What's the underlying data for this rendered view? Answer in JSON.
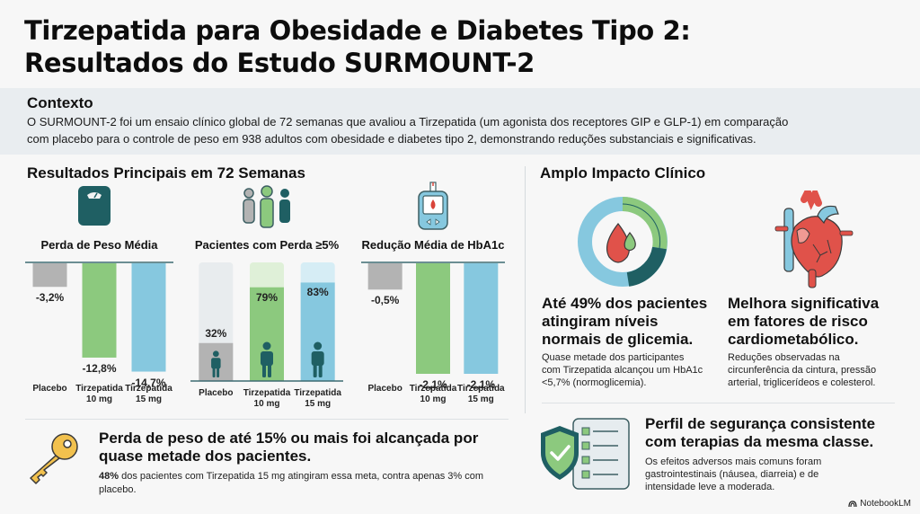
{
  "title": {
    "line1": "Tirzepatida para Obesidade e Diabetes Tipo 2:",
    "line2": "Resultados do Estudo SURMOUNT-2"
  },
  "context": {
    "heading": "Contexto",
    "text_line1": "O SURMOUNT-2 foi um ensaio clínico global de 72 semanas que avaliou a Tirzepatida (um agonista dos receptores GIP e GLP-1) em comparação",
    "text_line2": "com placebo para o controle de peso em 938 adultos com obesidade e diabetes tipo 2, demonstrando reduções substanciais e significativas."
  },
  "results": {
    "heading": "Resultados Principais em 72 Semanas"
  },
  "colors": {
    "placebo": "#b3b3b3",
    "tirz10": "#8cc97e",
    "tirz15": "#86c8df",
    "teal": "#1f5f63",
    "axis": "#3d6b72"
  },
  "chart_data": [
    {
      "type": "bar",
      "title": "Perda de Peso Média",
      "icon": "scale-icon",
      "categories": [
        "Placebo",
        "Tirzepatida 10 mg",
        "Tirzepatida 15 mg"
      ],
      "category_lines": [
        [
          "Placebo"
        ],
        [
          "Tirzepatida",
          "10 mg"
        ],
        [
          "Tirzepatida",
          "15 mg"
        ]
      ],
      "values": [
        -3.2,
        -12.8,
        -14.7
      ],
      "labels": [
        "-3,2%",
        "-12,8%",
        "-14,7%"
      ],
      "ylim": [
        -15,
        0
      ],
      "xlabel": "",
      "ylabel": ""
    },
    {
      "type": "bar",
      "title": "Pacientes com Perda ≥5%",
      "icon": "people-icon",
      "categories": [
        "Placebo",
        "Tirzepatida 10 mg",
        "Tirzepatida 15 mg"
      ],
      "category_lines": [
        [
          "Placebo"
        ],
        [
          "Tirzepatida",
          "10 mg"
        ],
        [
          "Tirzepatida",
          "15 mg"
        ]
      ],
      "values": [
        32,
        79,
        83
      ],
      "labels": [
        "32%",
        "79%",
        "83%"
      ],
      "ylim": [
        0,
        100
      ],
      "xlabel": "",
      "ylabel": ""
    },
    {
      "type": "bar",
      "title": "Redução Média de HbA1c",
      "icon": "glucose-meter-icon",
      "categories": [
        "Placebo",
        "Tirzepatida 10 mg",
        "Tirzepatida 15 mg"
      ],
      "category_lines": [
        [
          "Placebo"
        ],
        [
          "Tirzepatida",
          "10 mg"
        ],
        [
          "Tirzepatida",
          "15 mg"
        ]
      ],
      "values": [
        -0.5,
        -2.1,
        -2.1
      ],
      "labels": [
        "-0,5%",
        "-2,1%",
        "-2,1%"
      ],
      "ylim": [
        -2.1,
        0
      ],
      "xlabel": "",
      "ylabel": ""
    }
  ],
  "key_finding": {
    "icon": "key-icon",
    "heading": "Perda de peso de até 15% ou mais foi alcançada por quase metade dos pacientes.",
    "text_bold": "48%",
    "text_rest": " dos pacientes com Tirzepatida 15 mg atingiram essa meta, contra apenas 3% com placebo."
  },
  "impact": {
    "heading": "Amplo Impacto Clínico",
    "glycemia": {
      "icon": "blood-drop-ring-icon",
      "heading": "Até 49% dos pacientes atingiram níveis normais de glicemia.",
      "text": "Quase metade dos participantes com Tirzepatida alcançou um HbA1c <5,7% (normoglicemia)."
    },
    "cardio": {
      "icon": "heart-icon",
      "heading": "Melhora significativa em fatores de risco cardiometabólico.",
      "text": "Reduções observadas na circunferência da cintura, pressão arterial, triglicerídeos e colesterol."
    },
    "safety": {
      "icon": "shield-checklist-icon",
      "heading": "Perfil de segurança consistente com terapias da mesma classe.",
      "text": "Os efeitos adversos mais comuns foram gastrointestinais (náusea, diarreia) e de intensidade leve a moderada."
    }
  },
  "brand": {
    "label": "NotebookLM"
  }
}
